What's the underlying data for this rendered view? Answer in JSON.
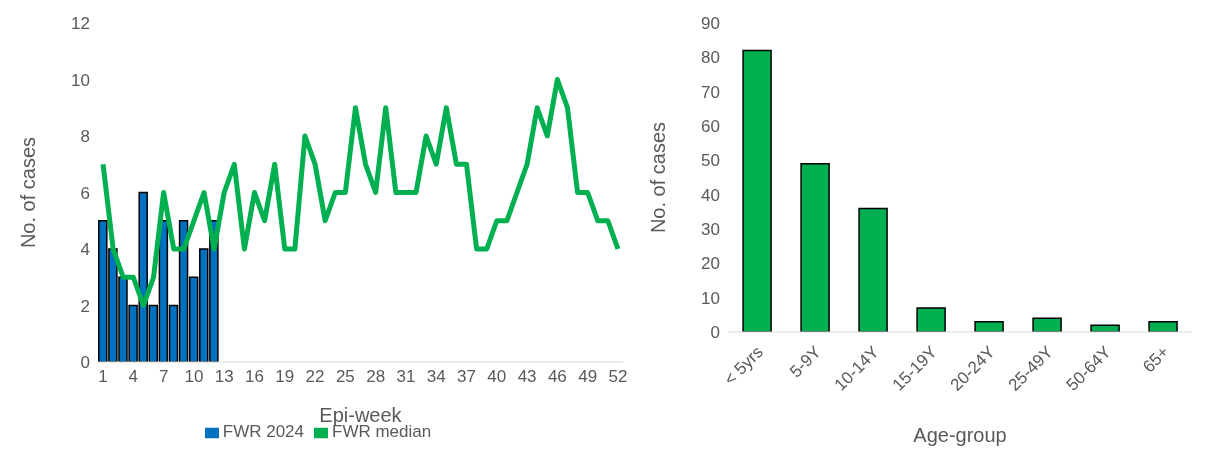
{
  "chart_data": [
    {
      "type": "bar",
      "xlabel": "Epi-week",
      "ylabel": "No. of cases",
      "categories": [
        "1",
        null,
        null,
        "4",
        null,
        null,
        "7",
        null,
        null,
        "10",
        null,
        null,
        "13",
        null,
        null,
        "16",
        null,
        null,
        "19",
        null,
        null,
        "22",
        null,
        null,
        "25",
        null,
        null,
        "28",
        null,
        null,
        "31",
        null,
        null,
        "34",
        null,
        null,
        "37",
        null,
        null,
        "40",
        null,
        null,
        "43",
        null,
        null,
        "46",
        null,
        null,
        "49",
        null,
        null,
        "52"
      ],
      "series": [
        {
          "name": "FWR 2024",
          "color": "#0070c0",
          "values": [
            5,
            4,
            3,
            2,
            6,
            2,
            5,
            2,
            5,
            3,
            4,
            5,
            null,
            null,
            null,
            null,
            null,
            null,
            null,
            null,
            null,
            null,
            null,
            null,
            null,
            null,
            null,
            null,
            null,
            null,
            null,
            null,
            null,
            null,
            null,
            null,
            null,
            null,
            null,
            null,
            null,
            null,
            null,
            null,
            null,
            null,
            null,
            null,
            null,
            null,
            null,
            null
          ]
        },
        {
          "name": "FWR median",
          "type": "line",
          "color": "#00b050",
          "values": [
            7,
            4,
            3,
            3,
            2,
            3,
            6,
            4,
            4,
            5,
            6,
            4,
            6,
            7,
            4,
            6,
            5,
            7,
            4,
            4,
            8,
            7,
            5,
            6,
            6,
            9,
            7,
            6,
            9,
            6,
            6,
            6,
            8,
            7,
            9,
            7,
            7,
            4,
            4,
            5,
            5,
            6,
            7,
            9,
            8,
            10,
            9,
            6,
            6,
            5,
            5,
            4
          ]
        }
      ],
      "ylim": [
        0,
        12
      ],
      "yticks": [
        0,
        2,
        4,
        6,
        8,
        10,
        12
      ],
      "grid": false,
      "legend": "bottom",
      "marker": "none"
    },
    {
      "type": "bar",
      "xlabel": "Age-group",
      "ylabel": "No. of cases",
      "categories": [
        "< 5yrs",
        "5-9Y",
        "10-14Y",
        "15-19Y",
        "20-24Y",
        "25-49Y",
        "50-64Y",
        "65+"
      ],
      "values": [
        82,
        49,
        36,
        7,
        3,
        4,
        2,
        3
      ],
      "color": "#00b050",
      "ylim": [
        0,
        90
      ],
      "yticks": [
        0,
        10,
        20,
        30,
        40,
        50,
        60,
        70,
        80,
        90
      ],
      "grid": false,
      "legend": false
    }
  ]
}
